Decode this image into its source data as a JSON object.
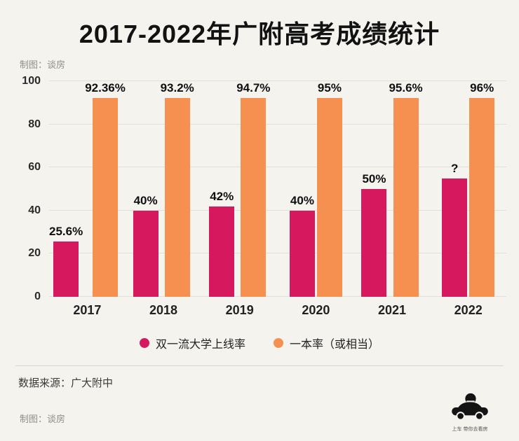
{
  "title": "2017-2022年广附高考成绩统计",
  "credit_top": "制图：谈房",
  "credit_bottom": "制图：谈房",
  "source": "数据来源：广大附中",
  "logo": {
    "caption": "上车 带你去看房"
  },
  "colors": {
    "pink": "#d6195f",
    "orange": "#f59051",
    "background": "#f5f3ee"
  },
  "chart_data": {
    "type": "bar",
    "title": "2017-2022年广附高考成绩统计",
    "categories": [
      "2017",
      "2018",
      "2019",
      "2020",
      "2021",
      "2022"
    ],
    "series": [
      {
        "name": "双一流大学上线率",
        "color": "#d6195f",
        "values": [
          25.6,
          40,
          42,
          40,
          50,
          55
        ],
        "labels": [
          "25.6%",
          "40%",
          "42%",
          "40%",
          "50%",
          "?"
        ]
      },
      {
        "name": "一本率（或相当）",
        "color": "#f59051",
        "values": [
          92.36,
          93.2,
          94.7,
          95,
          95.6,
          96
        ],
        "labels": [
          "92.36%",
          "93.2%",
          "94.7%",
          "95%",
          "95.6%",
          "96%"
        ]
      }
    ],
    "xlabel": "",
    "ylabel": "",
    "ylim": [
      0,
      100
    ],
    "yticks": [
      0,
      20,
      40,
      60,
      80,
      100
    ],
    "grid": true,
    "legend_position": "bottom"
  }
}
